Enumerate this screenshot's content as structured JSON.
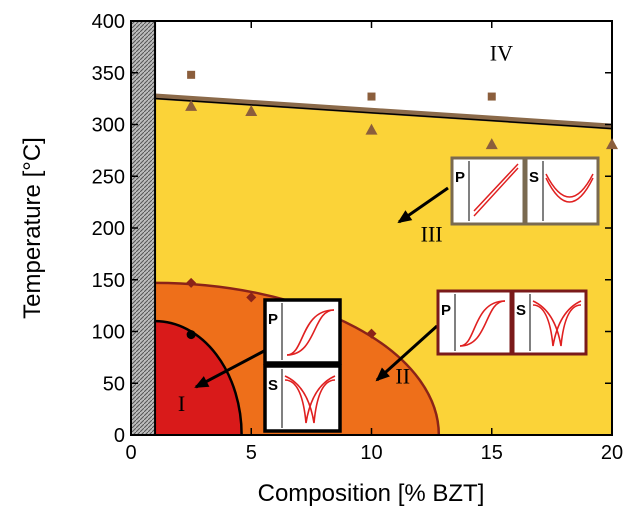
{
  "chart_data": {
    "type": "scatter",
    "title": "",
    "xlabel": "Composition [% BZT]",
    "ylabel": "Temperature [°C]",
    "xlim": [
      0,
      20
    ],
    "ylim": [
      0,
      400
    ],
    "xticks": [
      "0",
      "5",
      "10",
      "15",
      "20"
    ],
    "yticks": [
      "0",
      "50",
      "100",
      "150",
      "200",
      "250",
      "300",
      "350",
      "400"
    ],
    "series": [
      {
        "marker": "square",
        "color": "#8B5E3C",
        "points": [
          [
            2.5,
            348
          ],
          [
            10,
            327
          ],
          [
            15,
            327
          ]
        ]
      },
      {
        "marker": "triangle",
        "color": "#8B5E3C",
        "points": [
          [
            2.5,
            318
          ],
          [
            5,
            313
          ],
          [
            10,
            295
          ],
          [
            15,
            281
          ],
          [
            20,
            281
          ]
        ]
      },
      {
        "marker": "diamond",
        "color": "#8B2318",
        "points": [
          [
            2.5,
            147
          ],
          [
            5,
            133
          ],
          [
            10,
            98
          ]
        ]
      },
      {
        "marker": "circle",
        "color": "#000000",
        "points": [
          [
            2.5,
            97
          ]
        ]
      }
    ],
    "boundaries": {
      "upper_line": [
        [
          1,
          327
        ],
        [
          20,
          298
        ]
      ],
      "region_ii_edge": {
        "start_y": 147,
        "end_x": 12.8
      },
      "region_i_edge": {
        "start_y": 110,
        "end_x": 4.6
      },
      "excluded_strip_x": [
        0,
        1
      ]
    },
    "regions": [
      {
        "label": "I",
        "color": "#D91A1A",
        "at": [
          2.1,
          23
        ]
      },
      {
        "label": "II",
        "color": "#EE6F1A",
        "at": [
          11.3,
          50
        ]
      },
      {
        "label": "III",
        "color": "#FBD338",
        "at": [
          12.5,
          187
        ]
      },
      {
        "label": "IV",
        "color": "#FFFFFF",
        "at": [
          15.4,
          362
        ]
      }
    ],
    "insets": [
      {
        "id": "p1",
        "letter": "P",
        "region": "I",
        "border": "#000000"
      },
      {
        "id": "s1",
        "letter": "S",
        "region": "I",
        "border": "#000000"
      },
      {
        "id": "p2",
        "letter": "P",
        "region": "II",
        "border": "#7A1A1A"
      },
      {
        "id": "s2",
        "letter": "S",
        "region": "II",
        "border": "#7A1A1A"
      },
      {
        "id": "p3",
        "letter": "P",
        "region": "III",
        "border": "#7A6A50"
      },
      {
        "id": "s3",
        "letter": "S",
        "region": "III",
        "border": "#7A6A50"
      }
    ],
    "colors": {
      "loop": "#E02020",
      "upper_line": "#8B6A4A"
    }
  }
}
